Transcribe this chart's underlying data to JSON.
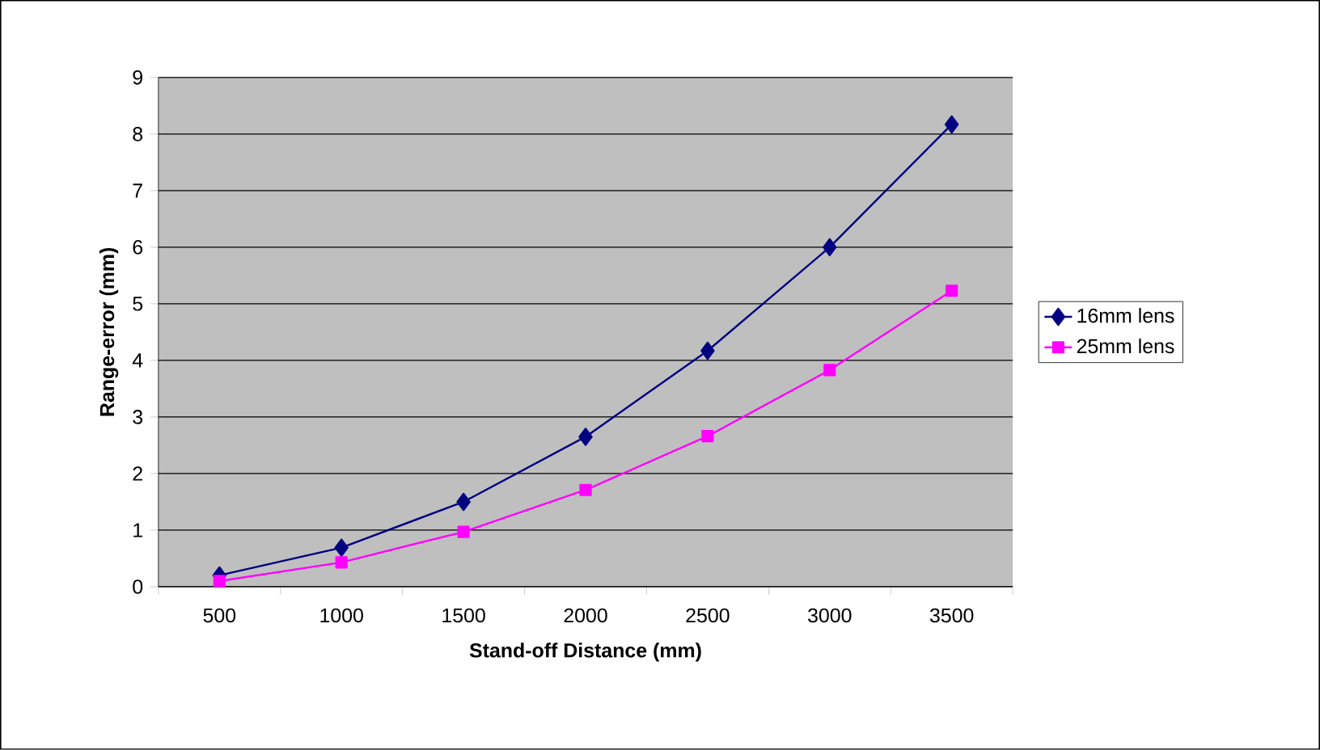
{
  "chart_data": {
    "type": "line",
    "xlabel": "Stand-off Distance (mm)",
    "ylabel": "Range-error (mm)",
    "categories": [
      "500",
      "1000",
      "1500",
      "2000",
      "2500",
      "3000",
      "3500"
    ],
    "ylim": [
      0,
      9
    ],
    "yticks": [
      0,
      1,
      2,
      3,
      4,
      5,
      6,
      7,
      8,
      9
    ],
    "grid": "y",
    "legend": "right",
    "series": [
      {
        "name": "16mm lens",
        "color": "#000080",
        "marker": "diamond",
        "values": [
          0.2,
          0.69,
          1.5,
          2.65,
          4.17,
          6.0,
          8.17
        ]
      },
      {
        "name": "25mm lens",
        "color": "#ff00ff",
        "marker": "square",
        "values": [
          0.1,
          0.43,
          0.97,
          1.71,
          2.66,
          3.83,
          5.23
        ]
      }
    ]
  }
}
